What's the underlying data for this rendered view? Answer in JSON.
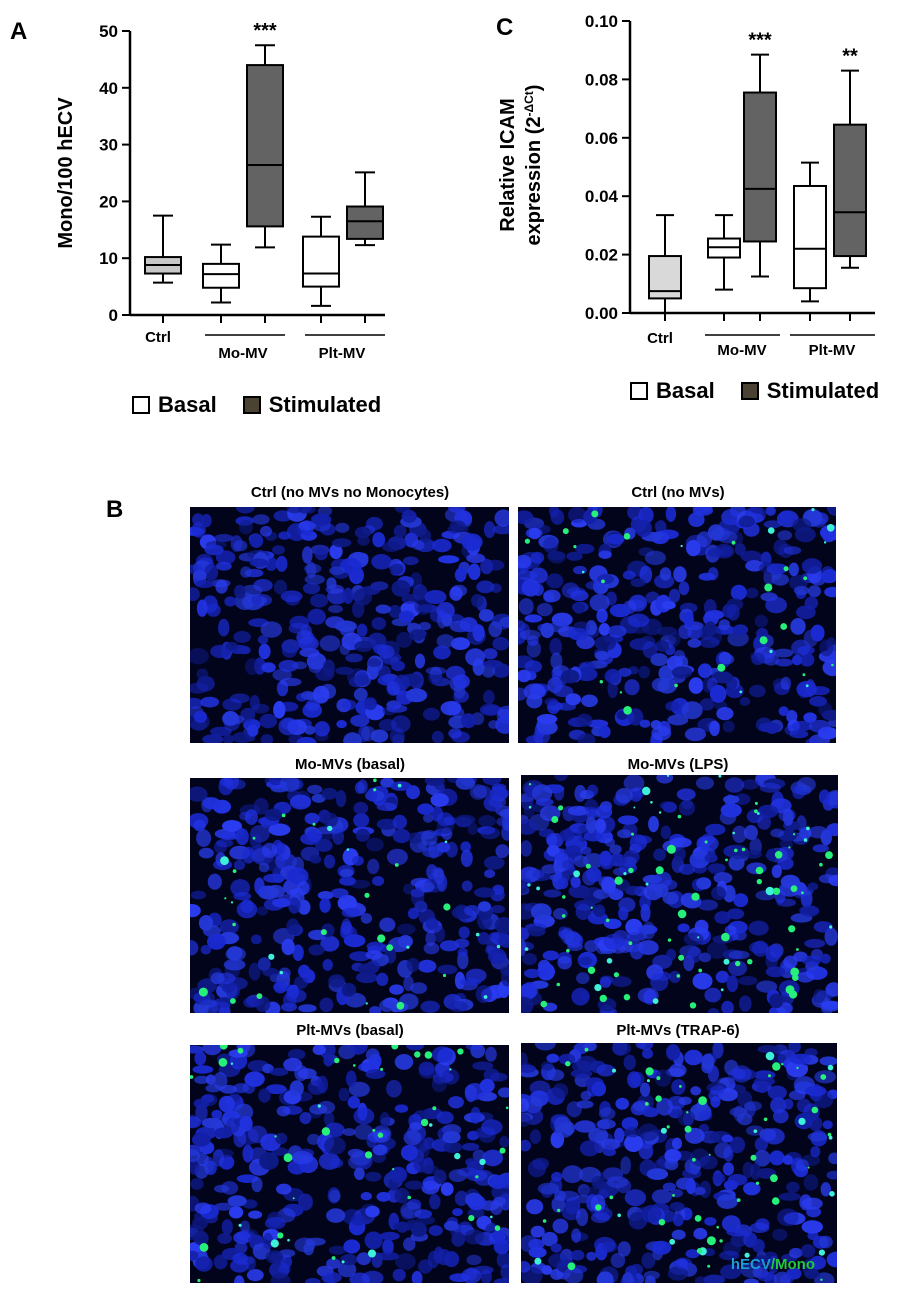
{
  "panels": {
    "a": {
      "letter": "A"
    },
    "b": {
      "letter": "B"
    },
    "c": {
      "letter": "C"
    }
  },
  "chart_data": [
    {
      "type": "box",
      "panel": "A",
      "ylabel": "Mono/100 hECV",
      "ylim": [
        0,
        50
      ],
      "yticks": [
        0,
        10,
        20,
        30,
        40,
        50
      ],
      "group_labels": [
        "Ctrl",
        "Mo-MV",
        "Plt-MV"
      ],
      "boxes": [
        {
          "group": "Ctrl",
          "condition": "Ctrl",
          "min": 5.7,
          "q1": 7.3,
          "median": 8.8,
          "q3": 10.2,
          "max": 17.5,
          "fill": "#c8c8c8",
          "sig": ""
        },
        {
          "group": "Mo-MV",
          "condition": "Basal",
          "min": 2.2,
          "q1": 4.8,
          "median": 7.2,
          "q3": 9.0,
          "max": 12.4,
          "fill": "#ffffff",
          "sig": ""
        },
        {
          "group": "Mo-MV",
          "condition": "Stimulated",
          "min": 11.9,
          "q1": 15.6,
          "median": 26.4,
          "q3": 44.0,
          "max": 47.5,
          "fill": "#636363",
          "sig": "***"
        },
        {
          "group": "Plt-MV",
          "condition": "Basal",
          "min": 1.6,
          "q1": 5.0,
          "median": 7.3,
          "q3": 13.8,
          "max": 17.3,
          "fill": "#ffffff",
          "sig": ""
        },
        {
          "group": "Plt-MV",
          "condition": "Stimulated",
          "min": 12.3,
          "q1": 13.4,
          "median": 16.5,
          "q3": 19.1,
          "max": 25.1,
          "fill": "#636363",
          "sig": ""
        }
      ]
    },
    {
      "type": "box",
      "panel": "C",
      "ylabel_line1": "Relative ICAM",
      "ylabel_line2": "expression (2",
      "ylabel_sup": "-ΔCt",
      "ylabel_end": ")",
      "ylim": [
        0,
        0.1
      ],
      "yticks": [
        "0.00",
        "0.02",
        "0.04",
        "0.06",
        "0.08",
        "0.10"
      ],
      "group_labels": [
        "Ctrl",
        "Mo-MV",
        "Plt-MV"
      ],
      "boxes": [
        {
          "group": "Ctrl",
          "condition": "Ctrl",
          "min": 0.0,
          "q1": 0.005,
          "median": 0.0075,
          "q3": 0.0195,
          "max": 0.0335,
          "fill": "#d9d9d9",
          "sig": ""
        },
        {
          "group": "Mo-MV",
          "condition": "Basal",
          "min": 0.008,
          "q1": 0.019,
          "median": 0.0225,
          "q3": 0.0255,
          "max": 0.0335,
          "fill": "#ffffff",
          "sig": ""
        },
        {
          "group": "Mo-MV",
          "condition": "Stimulated",
          "min": 0.0125,
          "q1": 0.0245,
          "median": 0.0425,
          "q3": 0.0755,
          "max": 0.0885,
          "fill": "#636363",
          "sig": "***"
        },
        {
          "group": "Plt-MV",
          "condition": "Basal",
          "min": 0.004,
          "q1": 0.0085,
          "median": 0.022,
          "q3": 0.0435,
          "max": 0.0515,
          "fill": "#ffffff",
          "sig": ""
        },
        {
          "group": "Plt-MV",
          "condition": "Stimulated",
          "min": 0.0155,
          "q1": 0.0195,
          "median": 0.0345,
          "q3": 0.0645,
          "max": 0.083,
          "fill": "#636363",
          "sig": "**"
        }
      ]
    }
  ],
  "legend": {
    "basal_label": "Basal",
    "stimulated_label": "Stimulated",
    "basal_color": "#ffffff",
    "stimulated_color": "#4a4232"
  },
  "micrographs": [
    {
      "title": "Ctrl (no MVs no Monocytes)",
      "monocyte_density": 0
    },
    {
      "title": "Ctrl (no MVs)",
      "monocyte_density": 0.35
    },
    {
      "title": "Mo-MVs (basal)",
      "monocyte_density": 0.4
    },
    {
      "title": "Mo-MVs (LPS)",
      "monocyte_density": 1.0
    },
    {
      "title": "Plt-MVs (basal)",
      "monocyte_density": 0.55
    },
    {
      "title": "Plt-MVs (TRAP-6)",
      "monocyte_density": 0.7
    }
  ],
  "overlay": {
    "hecv": "hECV",
    "mono": "/Mono",
    "hecv_color": "#1a9cd8",
    "mono_color": "#22c93a"
  },
  "colors": {
    "nuclei_blue": "#1b2bd6",
    "monocyte_green": "#27f07a",
    "background": "#02041c"
  }
}
